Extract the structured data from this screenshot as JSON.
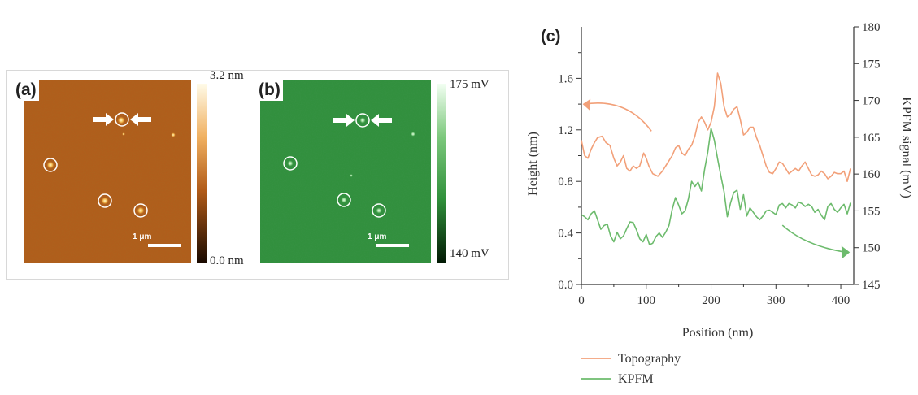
{
  "figure": {
    "panel_a": {
      "label": "(a)",
      "colorbar_max": "3.2 nm",
      "colorbar_min": "0.0 nm",
      "scale_bar": "1 μm"
    },
    "panel_b": {
      "label": "(b)",
      "colorbar_max": "175 mV",
      "colorbar_min": "140 mV",
      "scale_bar": "1 μm"
    },
    "panel_c": {
      "label": "(c)"
    }
  },
  "colors": {
    "topography": "#f2a079",
    "kpfm": "#6dbb6d",
    "afm_base": "#b05a18",
    "kpfm_base": "#2f8f3a"
  },
  "chart_data": {
    "type": "line",
    "xlabel": "Position (nm)",
    "ylabel_left": "Height (nm)",
    "ylabel_right": "KPFM signal (mV)",
    "xlim": [
      0,
      420
    ],
    "ylim_left": [
      0,
      2.0
    ],
    "ylim_right": [
      145,
      180
    ],
    "x_ticks": [
      0,
      100,
      200,
      300,
      400
    ],
    "y_left_ticks": [
      "0.0",
      "0.4",
      "0.8",
      "1.2",
      "1.6"
    ],
    "y_right_ticks": [
      "145",
      "150",
      "155",
      "160",
      "165",
      "170",
      "175",
      "180"
    ],
    "legend_position": "bottom-left",
    "series": [
      {
        "name": "Topography",
        "axis": "left",
        "points": [
          [
            0,
            1.12
          ],
          [
            5,
            1.0
          ],
          [
            10,
            0.98
          ],
          [
            15,
            1.05
          ],
          [
            20,
            1.1
          ],
          [
            25,
            1.14
          ],
          [
            32,
            1.15
          ],
          [
            38,
            1.1
          ],
          [
            44,
            1.08
          ],
          [
            50,
            0.98
          ],
          [
            55,
            0.92
          ],
          [
            60,
            0.95
          ],
          [
            65,
            1.0
          ],
          [
            70,
            0.9
          ],
          [
            75,
            0.88
          ],
          [
            80,
            0.92
          ],
          [
            85,
            0.9
          ],
          [
            90,
            0.92
          ],
          [
            96,
            1.02
          ],
          [
            100,
            0.98
          ],
          [
            104,
            0.92
          ],
          [
            110,
            0.86
          ],
          [
            118,
            0.84
          ],
          [
            125,
            0.88
          ],
          [
            130,
            0.92
          ],
          [
            135,
            0.96
          ],
          [
            140,
            1.0
          ],
          [
            145,
            1.06
          ],
          [
            150,
            1.08
          ],
          [
            155,
            1.02
          ],
          [
            160,
            1.0
          ],
          [
            165,
            1.05
          ],
          [
            170,
            1.08
          ],
          [
            175,
            1.15
          ],
          [
            180,
            1.26
          ],
          [
            185,
            1.3
          ],
          [
            190,
            1.26
          ],
          [
            195,
            1.2
          ],
          [
            200,
            1.26
          ],
          [
            205,
            1.38
          ],
          [
            210,
            1.64
          ],
          [
            215,
            1.56
          ],
          [
            220,
            1.38
          ],
          [
            225,
            1.3
          ],
          [
            230,
            1.32
          ],
          [
            235,
            1.36
          ],
          [
            240,
            1.38
          ],
          [
            245,
            1.28
          ],
          [
            250,
            1.16
          ],
          [
            255,
            1.18
          ],
          [
            260,
            1.22
          ],
          [
            265,
            1.22
          ],
          [
            270,
            1.14
          ],
          [
            275,
            1.08
          ],
          [
            280,
            1.0
          ],
          [
            285,
            0.92
          ],
          [
            290,
            0.87
          ],
          [
            295,
            0.86
          ],
          [
            300,
            0.9
          ],
          [
            305,
            0.95
          ],
          [
            310,
            0.94
          ],
          [
            315,
            0.9
          ],
          [
            320,
            0.86
          ],
          [
            325,
            0.88
          ],
          [
            330,
            0.9
          ],
          [
            335,
            0.88
          ],
          [
            340,
            0.92
          ],
          [
            345,
            0.95
          ],
          [
            350,
            0.9
          ],
          [
            355,
            0.85
          ],
          [
            360,
            0.84
          ],
          [
            365,
            0.85
          ],
          [
            370,
            0.88
          ],
          [
            375,
            0.86
          ],
          [
            380,
            0.82
          ],
          [
            385,
            0.84
          ],
          [
            390,
            0.87
          ],
          [
            395,
            0.86
          ],
          [
            400,
            0.86
          ],
          [
            405,
            0.88
          ],
          [
            410,
            0.8
          ],
          [
            415,
            0.9
          ]
        ]
      },
      {
        "name": "KPFM",
        "axis": "right",
        "points": [
          [
            0,
            154.5
          ],
          [
            5,
            154.2
          ],
          [
            10,
            153.8
          ],
          [
            15,
            154.6
          ],
          [
            20,
            155.0
          ],
          [
            25,
            153.8
          ],
          [
            30,
            152.5
          ],
          [
            35,
            153.0
          ],
          [
            40,
            153.2
          ],
          [
            45,
            151.6
          ],
          [
            50,
            150.8
          ],
          [
            55,
            152.1
          ],
          [
            60,
            151.2
          ],
          [
            65,
            151.6
          ],
          [
            70,
            152.6
          ],
          [
            75,
            153.5
          ],
          [
            80,
            153.4
          ],
          [
            85,
            152.4
          ],
          [
            90,
            151.2
          ],
          [
            95,
            150.8
          ],
          [
            100,
            151.8
          ],
          [
            105,
            150.4
          ],
          [
            110,
            150.6
          ],
          [
            115,
            151.5
          ],
          [
            120,
            152.0
          ],
          [
            125,
            151.4
          ],
          [
            130,
            152.1
          ],
          [
            135,
            153.0
          ],
          [
            140,
            155.2
          ],
          [
            145,
            156.8
          ],
          [
            150,
            155.8
          ],
          [
            155,
            154.6
          ],
          [
            160,
            155.0
          ],
          [
            165,
            156.6
          ],
          [
            170,
            159.0
          ],
          [
            175,
            158.3
          ],
          [
            180,
            158.9
          ],
          [
            185,
            157.7
          ],
          [
            190,
            160.6
          ],
          [
            195,
            163.0
          ],
          [
            200,
            166.2
          ],
          [
            205,
            164.6
          ],
          [
            210,
            162.1
          ],
          [
            215,
            159.8
          ],
          [
            220,
            157.6
          ],
          [
            225,
            154.2
          ],
          [
            230,
            156.1
          ],
          [
            235,
            157.5
          ],
          [
            240,
            157.8
          ],
          [
            245,
            155.2
          ],
          [
            250,
            157.2
          ],
          [
            255,
            154.3
          ],
          [
            260,
            155.4
          ],
          [
            265,
            154.8
          ],
          [
            270,
            154.2
          ],
          [
            275,
            153.8
          ],
          [
            280,
            154.3
          ],
          [
            285,
            155.0
          ],
          [
            290,
            155.1
          ],
          [
            295,
            154.8
          ],
          [
            300,
            154.5
          ],
          [
            305,
            155.8
          ],
          [
            310,
            156.0
          ],
          [
            315,
            155.4
          ],
          [
            320,
            156.0
          ],
          [
            325,
            155.8
          ],
          [
            330,
            155.4
          ],
          [
            335,
            156.2
          ],
          [
            340,
            156.0
          ],
          [
            345,
            155.6
          ],
          [
            350,
            155.9
          ],
          [
            355,
            155.6
          ],
          [
            360,
            154.8
          ],
          [
            365,
            155.2
          ],
          [
            370,
            154.4
          ],
          [
            375,
            153.8
          ],
          [
            380,
            155.6
          ],
          [
            385,
            156.0
          ],
          [
            390,
            155.2
          ],
          [
            395,
            154.8
          ],
          [
            400,
            155.4
          ],
          [
            405,
            155.9
          ],
          [
            410,
            154.6
          ],
          [
            415,
            156.1
          ]
        ]
      }
    ]
  }
}
